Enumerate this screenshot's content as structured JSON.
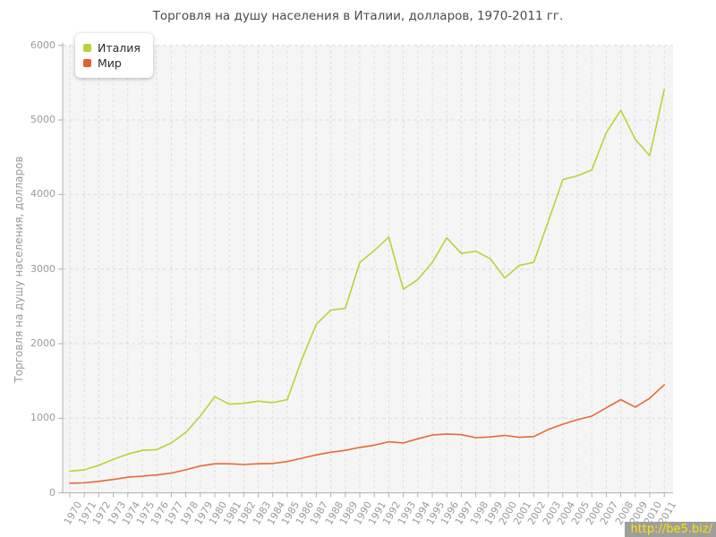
{
  "title": "Торговля на душу населения в Италии, долларов, 1970-2011 гг.",
  "y_axis_title": "Торговля на душу населения, долларов",
  "legend": {
    "items": [
      {
        "label": "Италия",
        "color": "#b7d435"
      },
      {
        "label": "Мир",
        "color": "#e2622b"
      }
    ]
  },
  "watermark": {
    "text": "http://be5.biz/"
  },
  "colors": {
    "plot_background": "#f5f5f5",
    "grid": "#dcdcdc",
    "axis": "#b0b0b0",
    "tick_text": "#9a9a9a",
    "italy_line": "#b7d435",
    "world_line": "#e56a35",
    "watermark_bg": "#9e9e9e",
    "watermark_text": "#ffe100"
  },
  "chart_data": {
    "type": "line",
    "title": "Торговля на душу населения в Италии, долларов, 1970-2011 гг.",
    "xlabel": "",
    "ylabel": "Торговля на душу населения, долларов",
    "ylim": [
      0,
      6000
    ],
    "yticks": [
      0,
      1000,
      2000,
      3000,
      4000,
      5000,
      6000
    ],
    "grid": true,
    "legend_position": "top-left",
    "x": [
      1970,
      1971,
      1972,
      1973,
      1974,
      1975,
      1976,
      1977,
      1978,
      1979,
      1980,
      1981,
      1982,
      1983,
      1984,
      1985,
      1986,
      1987,
      1988,
      1989,
      1990,
      1991,
      1992,
      1993,
      1994,
      1995,
      1996,
      1997,
      1998,
      1999,
      2000,
      2001,
      2002,
      2003,
      2004,
      2005,
      2006,
      2007,
      2008,
      2009,
      2010,
      2011
    ],
    "series": [
      {
        "name": "Италия",
        "color": "#b7d435",
        "values": [
          290,
          310,
          370,
          450,
          520,
          570,
          580,
          670,
          810,
          1030,
          1290,
          1190,
          1200,
          1230,
          1210,
          1250,
          1790,
          2260,
          2450,
          2475,
          3090,
          3250,
          3430,
          2730,
          2860,
          3090,
          3420,
          3210,
          3240,
          3140,
          2880,
          3050,
          3090,
          3640,
          4200,
          4250,
          4330,
          4830,
          5130,
          4740,
          4520,
          5410
        ]
      },
      {
        "name": "Мир",
        "color": "#e56a35",
        "values": [
          130,
          135,
          155,
          180,
          210,
          225,
          240,
          265,
          310,
          360,
          390,
          390,
          380,
          390,
          395,
          420,
          465,
          510,
          545,
          570,
          610,
          640,
          685,
          670,
          725,
          775,
          790,
          780,
          740,
          750,
          770,
          745,
          755,
          850,
          920,
          980,
          1030,
          1140,
          1250,
          1150,
          1270,
          1450
        ]
      }
    ]
  }
}
